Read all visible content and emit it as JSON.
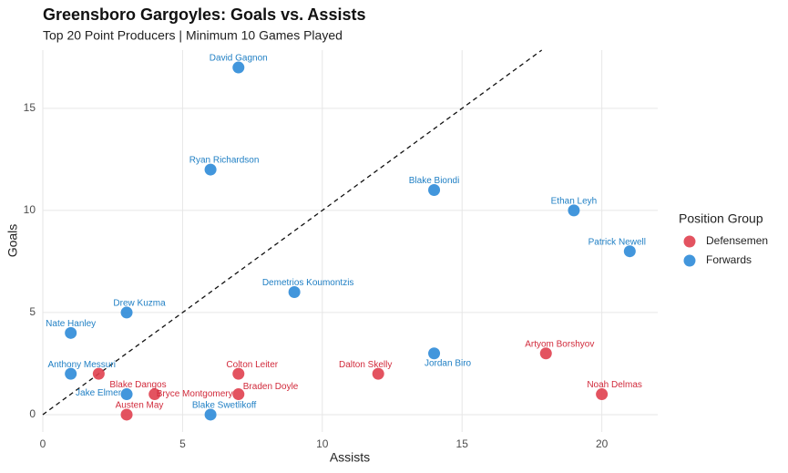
{
  "chart_data": {
    "type": "scatter",
    "title": "Greensboro Gargoyles: Goals vs. Assists",
    "subtitle": "Top 20 Point Producers | Minimum 10 Games Played",
    "x_label": "Assists",
    "y_label": "Goals",
    "xlim": [
      0,
      22
    ],
    "ylim": [
      -0.85,
      17.85
    ],
    "xticks": [
      0,
      5,
      10,
      15,
      20
    ],
    "yticks": [
      0,
      5,
      10,
      15
    ],
    "grid": true,
    "diagonal": true,
    "legend_title": "Position Group",
    "legend": "right",
    "series": [
      {
        "name": "Defensemen",
        "color": "#e0404f",
        "label_color": "#d12a3b",
        "labels": [
          "Artyom Borshyov",
          "Dalton Skelly",
          "Colton Leiter",
          "Blake Dangos",
          "Noah Delmas",
          "Braden Doyle",
          "Bryce Montgomery",
          "Austen May"
        ],
        "x": [
          18,
          12,
          7,
          2,
          20,
          7,
          4,
          3
        ],
        "values": [
          3,
          2,
          2,
          2,
          1,
          1,
          1,
          0
        ]
      },
      {
        "name": "Forwards",
        "color": "#2e8bd8",
        "label_color": "#1f7fc4",
        "labels": [
          "David Gagnon",
          "Ryan Richardson",
          "Blake Biondi",
          "Ethan Leyh",
          "Patrick Newell",
          "Demetrios Koumontzis",
          "Drew Kuzma",
          "Nate Hanley",
          "Jordan Biro",
          "Anthony Messuri",
          "Jake Elmer",
          "Blake Swetlikoff"
        ],
        "x": [
          7,
          6,
          14,
          19,
          21,
          9,
          3,
          1,
          14,
          1,
          3,
          6
        ],
        "values": [
          17,
          12,
          11,
          10,
          8,
          6,
          5,
          4,
          3,
          2,
          1,
          0
        ]
      }
    ]
  }
}
